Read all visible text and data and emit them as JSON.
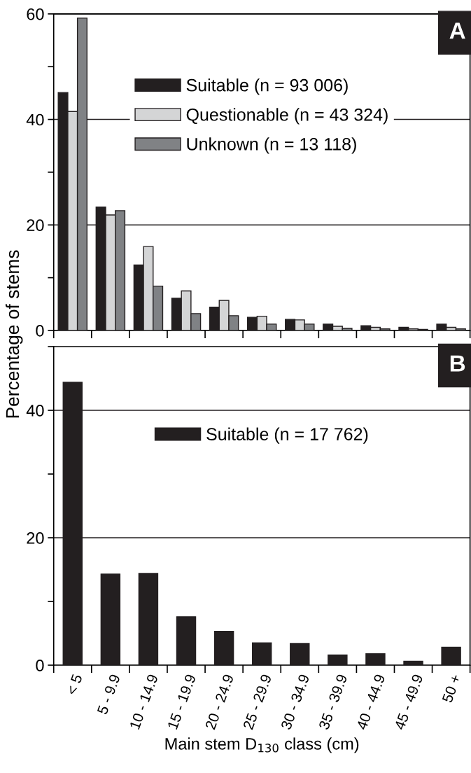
{
  "chart_data": [
    {
      "type": "bar",
      "ylabel": "Percentage of stems",
      "categories": [
        null,
        null,
        null,
        null,
        null,
        null,
        null,
        null,
        null,
        null,
        null
      ],
      "series": [
        {
          "name": "Suitable (n = 93 006)",
          "color": "#231f20",
          "values": [
            45.1,
            23.4,
            12.4,
            6.1,
            4.4,
            2.5,
            2.1,
            1.2,
            0.9,
            0.6,
            1.2
          ]
        },
        {
          "name": "Questionable (n = 43 324)",
          "color": "#d4d5d6",
          "values": [
            41.5,
            21.9,
            15.9,
            7.5,
            5.7,
            2.7,
            2.0,
            0.8,
            0.6,
            0.3,
            0.6
          ]
        },
        {
          "name": "Unknown (n = 13 118)",
          "color": "#808285",
          "values": [
            59.2,
            22.7,
            8.4,
            3.2,
            2.8,
            1.2,
            1.2,
            0.4,
            0.3,
            0.2,
            0.3
          ]
        }
      ],
      "ylim": [
        0,
        60
      ],
      "yticks": [
        0,
        {
          "value": 10,
          "label": null
        },
        20,
        {
          "value": 30,
          "label": null
        },
        40,
        {
          "value": 50,
          "label": null
        },
        60
      ],
      "grid": "y",
      "legend": "top",
      "annotations": [
        "A"
      ]
    },
    {
      "type": "bar",
      "xlabel": "Main stem D$_{130}$ class (cm)",
      "categories": [
        "< 5",
        "5 - 9.9",
        "10 - 14.9",
        "15 - 19.9",
        "20 - 24.9",
        "25 - 29.9",
        "30 - 34.9",
        "35 - 39.9",
        "40 - 44.9",
        "45 - 49.9",
        "50 +"
      ],
      "series": [
        {
          "name": "Suitable (n = 17 762)",
          "color": "#231f20",
          "values": [
            44.4,
            14.3,
            14.4,
            7.6,
            5.3,
            3.5,
            3.4,
            1.6,
            1.8,
            0.6,
            2.8
          ]
        }
      ],
      "ylim": [
        0,
        50
      ],
      "yticks": [
        0,
        {
          "value": 10,
          "label": null
        },
        20,
        {
          "value": 30,
          "label": null
        },
        40,
        {
          "value": 50,
          "label": null
        }
      ],
      "grid": "y",
      "legend": "top",
      "annotations": [
        "B"
      ]
    }
  ]
}
